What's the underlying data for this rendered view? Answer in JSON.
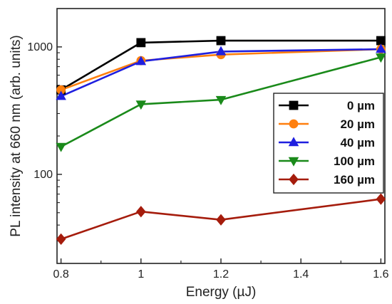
{
  "chart_data": {
    "type": "line",
    "title": "",
    "xlabel": "Energy (µJ)",
    "ylabel": "PL intensity at 660 nm (arb. units)",
    "xlim": [
      0.79,
      1.61
    ],
    "ylim": [
      20,
      2000
    ],
    "yscale": "log",
    "x_ticks": [
      0.8,
      1,
      1.2,
      1.4,
      1.6
    ],
    "x_tick_labels": [
      "0.8",
      "1",
      "1.2",
      "1.4",
      "1.6"
    ],
    "y_ticks": [
      100,
      1000
    ],
    "y_tick_labels": [
      "100",
      "1000"
    ],
    "grid": false,
    "legend_position": "right",
    "x": [
      0.8,
      1.0,
      1.2,
      1.6
    ],
    "series": [
      {
        "name": "0 µm",
        "color": "#000000",
        "marker": "square",
        "values": [
          460,
          1080,
          1120,
          1120
        ]
      },
      {
        "name": "20 µm",
        "color": "#ff7f0e",
        "marker": "circle",
        "values": [
          460,
          780,
          870,
          960
        ]
      },
      {
        "name": "40 µm",
        "color": "#1f1fdf",
        "marker": "triangle-up",
        "values": [
          410,
          770,
          920,
          960
        ]
      },
      {
        "name": "100 µm",
        "color": "#1a8a1a",
        "marker": "triangle-down",
        "values": [
          165,
          355,
          385,
          830
        ]
      },
      {
        "name": "160 µm",
        "color": "#a51c0c",
        "marker": "diamond",
        "values": [
          31,
          51,
          44,
          64
        ]
      }
    ]
  }
}
